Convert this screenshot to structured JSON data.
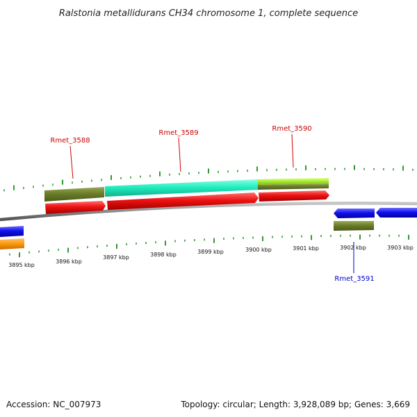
{
  "title": "Ralstonia metallidurans CH34 chromosome 1, complete sequence",
  "footer": {
    "accession": "Accession: NC_007973",
    "summary": "Topology: circular; Length: 3,928,089 bp; Genes: 3,669"
  },
  "colors": {
    "backbone": "#8a8a8a",
    "tick": "#1a8a1a",
    "label_forward": "#cc0000",
    "label_reverse": "#0000cc"
  },
  "ticks": [
    "3895 kbp",
    "3896 kbp",
    "3897 kbp",
    "3898 kbp",
    "3899 kbp",
    "3900 kbp",
    "3901 kbp",
    "3902 kbp",
    "3903 kbp"
  ],
  "gene_labels": [
    {
      "name": "Rmet_3588",
      "strand": "forward"
    },
    {
      "name": "Rmet_3589",
      "strand": "forward"
    },
    {
      "name": "Rmet_3590",
      "strand": "forward"
    },
    {
      "name": "Rmet_3591",
      "strand": "reverse"
    }
  ]
}
